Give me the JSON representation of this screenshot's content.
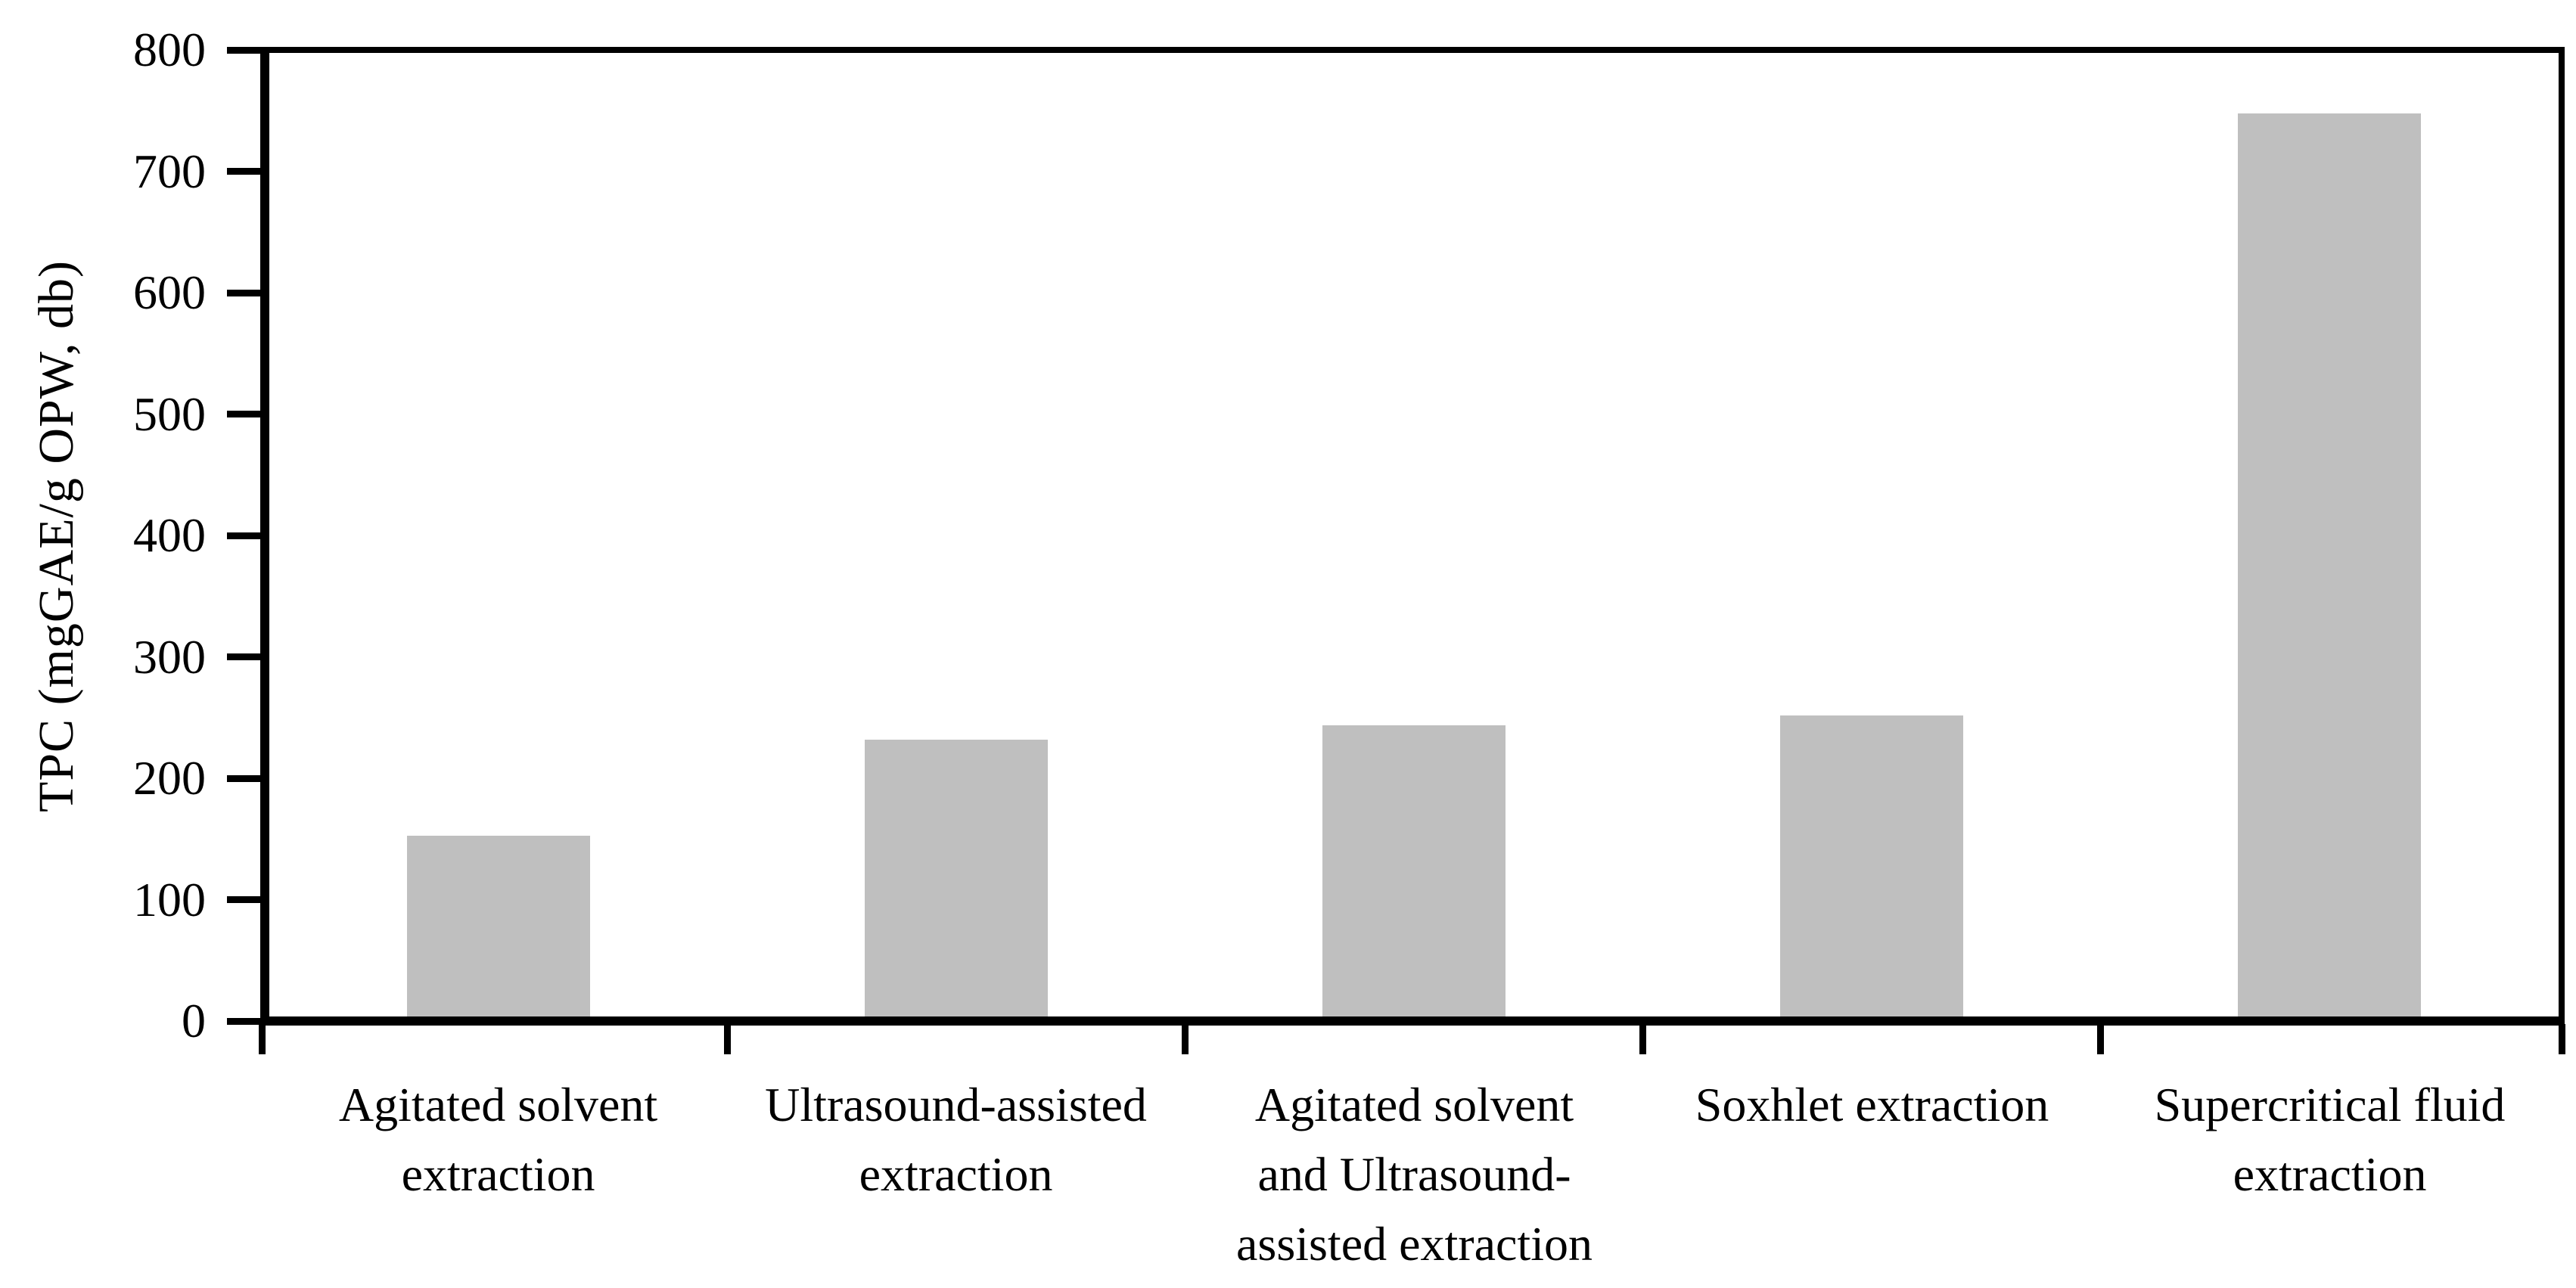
{
  "chart_data": {
    "type": "bar",
    "categories": [
      "Agitated solvent\nextraction",
      "Ultrasound-assisted\nextraction",
      "Agitated solvent\nand Ultrasound-\nassisted extraction",
      "Soxhlet extraction",
      "Supercritical fluid\nextraction"
    ],
    "values": [
      150,
      230,
      242,
      250,
      750
    ],
    "title": "",
    "xlabel": "",
    "ylabel": "TPC (mgGAE/g OPW, db)",
    "ylim": [
      0,
      800
    ],
    "yticks": [
      0,
      100,
      200,
      300,
      400,
      500,
      600,
      700,
      800
    ],
    "grid": false,
    "legend": null,
    "bar_color": "#bfbfbf",
    "axis_color": "#000000"
  }
}
